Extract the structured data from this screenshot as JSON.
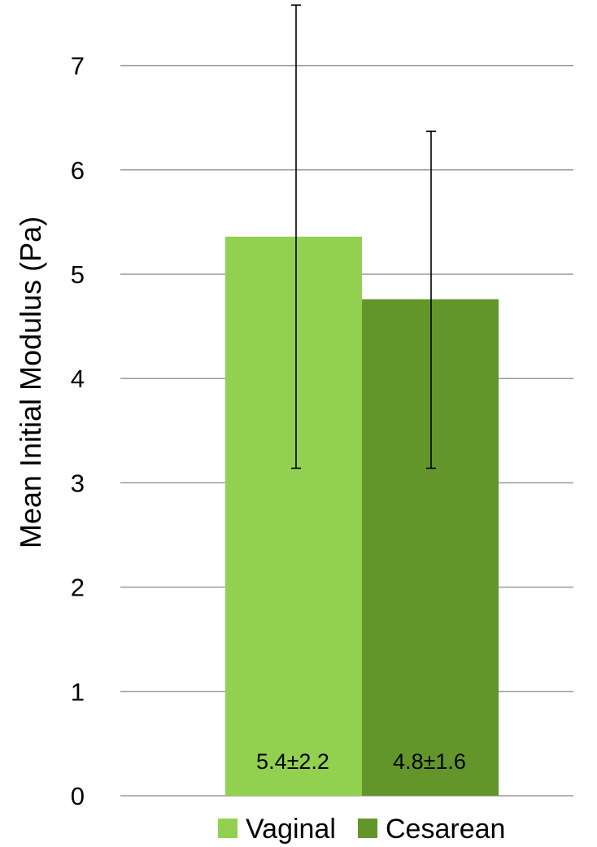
{
  "chart_data": {
    "type": "bar",
    "title": "",
    "xlabel": "",
    "ylabel": "Mean Initial Modulus (Pa)",
    "ylim": [
      0,
      7.5
    ],
    "yticks": [
      0,
      1,
      2,
      3,
      4,
      5,
      6,
      7
    ],
    "grid": true,
    "legend_position": "bottom",
    "series": [
      {
        "name": "Vaginal",
        "value": 5.36,
        "error_upper": 7.58,
        "error_lower": 3.14,
        "label": "5.4±2.2",
        "color": "#92d050"
      },
      {
        "name": "Cesarean",
        "value": 4.76,
        "error_upper": 6.37,
        "error_lower": 3.14,
        "label": "4.8±1.6",
        "color": "#62962b"
      }
    ]
  }
}
